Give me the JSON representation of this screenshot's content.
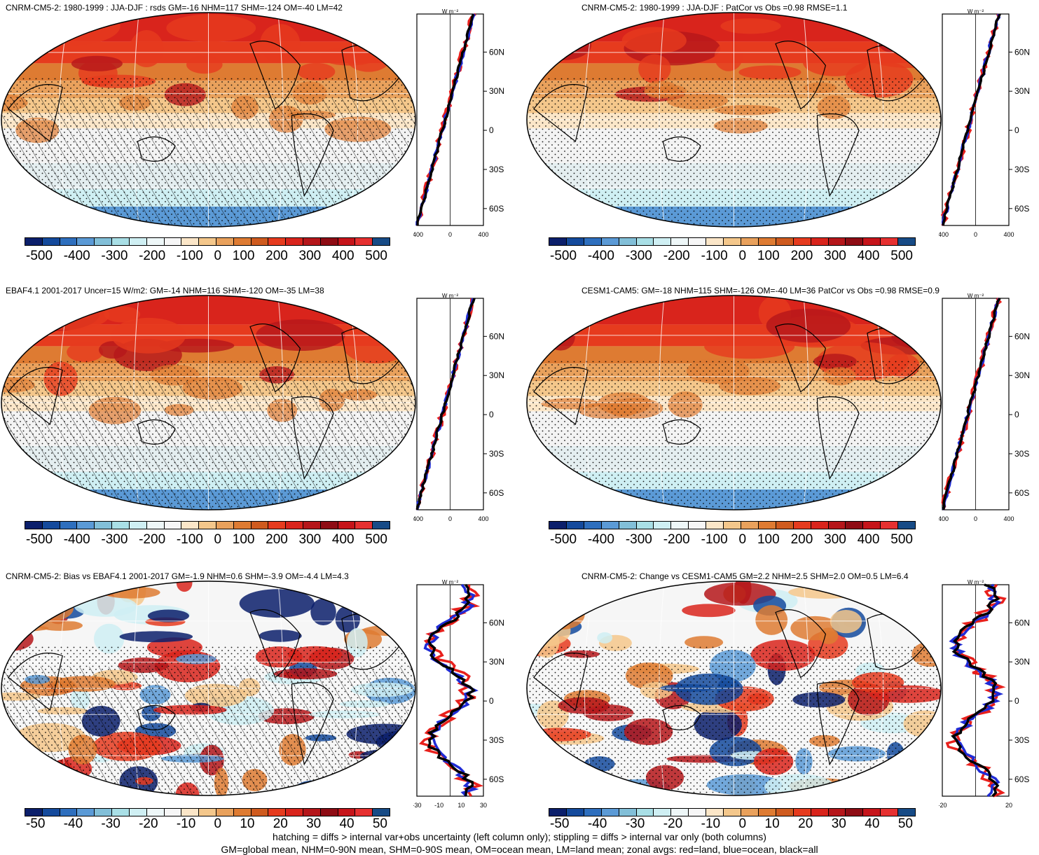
{
  "palette": [
    "#0b1f6b",
    "#144a9c",
    "#2e6fbe",
    "#5b9ad6",
    "#82bfd8",
    "#a9dfe6",
    "#cfeff3",
    "#eef7f8",
    "#f6f6f6",
    "#fbe6c8",
    "#f4c78b",
    "#e9a15c",
    "#de7b32",
    "#cf5b1f",
    "#e63b1e",
    "#d9241c",
    "#b5161a",
    "#8e0c14",
    "#c6141a",
    "#e63030",
    "#174b86"
  ],
  "colors": {
    "land": "#e8201c",
    "ocean": "#1f2bd6",
    "all": "#000000"
  },
  "panels": [
    {
      "title": "CNRM-CM5-2: 1980-1999 : JJA-DJF : rsds GM=-16 NHM=117 SHM=-124 OM=-40 LM=42",
      "cbar_labels": [
        "-500",
        "-400",
        "-300",
        "-200",
        "-100",
        "0",
        "100",
        "200",
        "300",
        "400",
        "500"
      ],
      "zonal_xticks": [
        "-400",
        "0",
        "400"
      ],
      "hatch": true
    },
    {
      "title": "CNRM-CM5-2: 1980-1999 : JJA-DJF : PatCor vs Obs =0.98 RMSE=1.1",
      "cbar_labels": [
        "-500",
        "-400",
        "-300",
        "-200",
        "-100",
        "0",
        "100",
        "200",
        "300",
        "400",
        "500"
      ],
      "zonal_xticks": [
        "-400",
        "0",
        "400"
      ],
      "hatch": false
    },
    {
      "title": "EBAF4.1 2001-2017 Uncer=15 W/m2: GM=-14 NHM=116 SHM=-120 OM=-35 LM=38",
      "cbar_labels": [
        "-500",
        "-400",
        "-300",
        "-200",
        "-100",
        "0",
        "100",
        "200",
        "300",
        "400",
        "500"
      ],
      "zonal_xticks": [
        "-400",
        "0",
        "400"
      ],
      "hatch": true
    },
    {
      "title": "CESM1-CAM5: GM=-18 NHM=115 SHM=-126 OM=-40 LM=36 PatCor vs Obs =0.98 RMSE=0.9",
      "cbar_labels": [
        "-500",
        "-400",
        "-300",
        "-200",
        "-100",
        "0",
        "100",
        "200",
        "300",
        "400",
        "500"
      ],
      "zonal_xticks": [
        "-400",
        "0",
        "400"
      ],
      "hatch": false
    },
    {
      "title": "CNRM-CM5-2: Bias vs EBAF4.1 2001-2017 GM=-1.9 NHM=0.6 SHM=-3.9 OM=-4.4 LM=4.3",
      "cbar_labels": [
        "-50",
        "-40",
        "-30",
        "-20",
        "-10",
        "0",
        "10",
        "20",
        "30",
        "40",
        "50"
      ],
      "zonal_xticks": [
        "-30",
        "-10",
        "10",
        "30"
      ],
      "hatch": true
    },
    {
      "title": "CNRM-CM5-2: Change vs CESM1-CAM5 GM=2.2 NHM=2.5 SHM=2.0 OM=0.5 LM=6.4",
      "cbar_labels": [
        "-50",
        "-40",
        "-30",
        "-20",
        "-10",
        "0",
        "10",
        "20",
        "30",
        "40",
        "50"
      ],
      "zonal_xticks": [
        "-20",
        "20"
      ],
      "hatch": false
    }
  ],
  "zonal_units": "W m⁻²",
  "lat_labels": [
    "60N",
    "30N",
    "0",
    "30S",
    "60S"
  ],
  "footnote": {
    "line1": "hatching = diffs > internal var+obs uncertainty (left column only); stippling = diffs > internal var only (both columns)",
    "line2": "GM=global mean, NHM=0-90N mean, SHM=0-90S mean, OM=ocean mean, LM=land mean; zonal avgs: red=land, blue=ocean, black=all"
  }
}
